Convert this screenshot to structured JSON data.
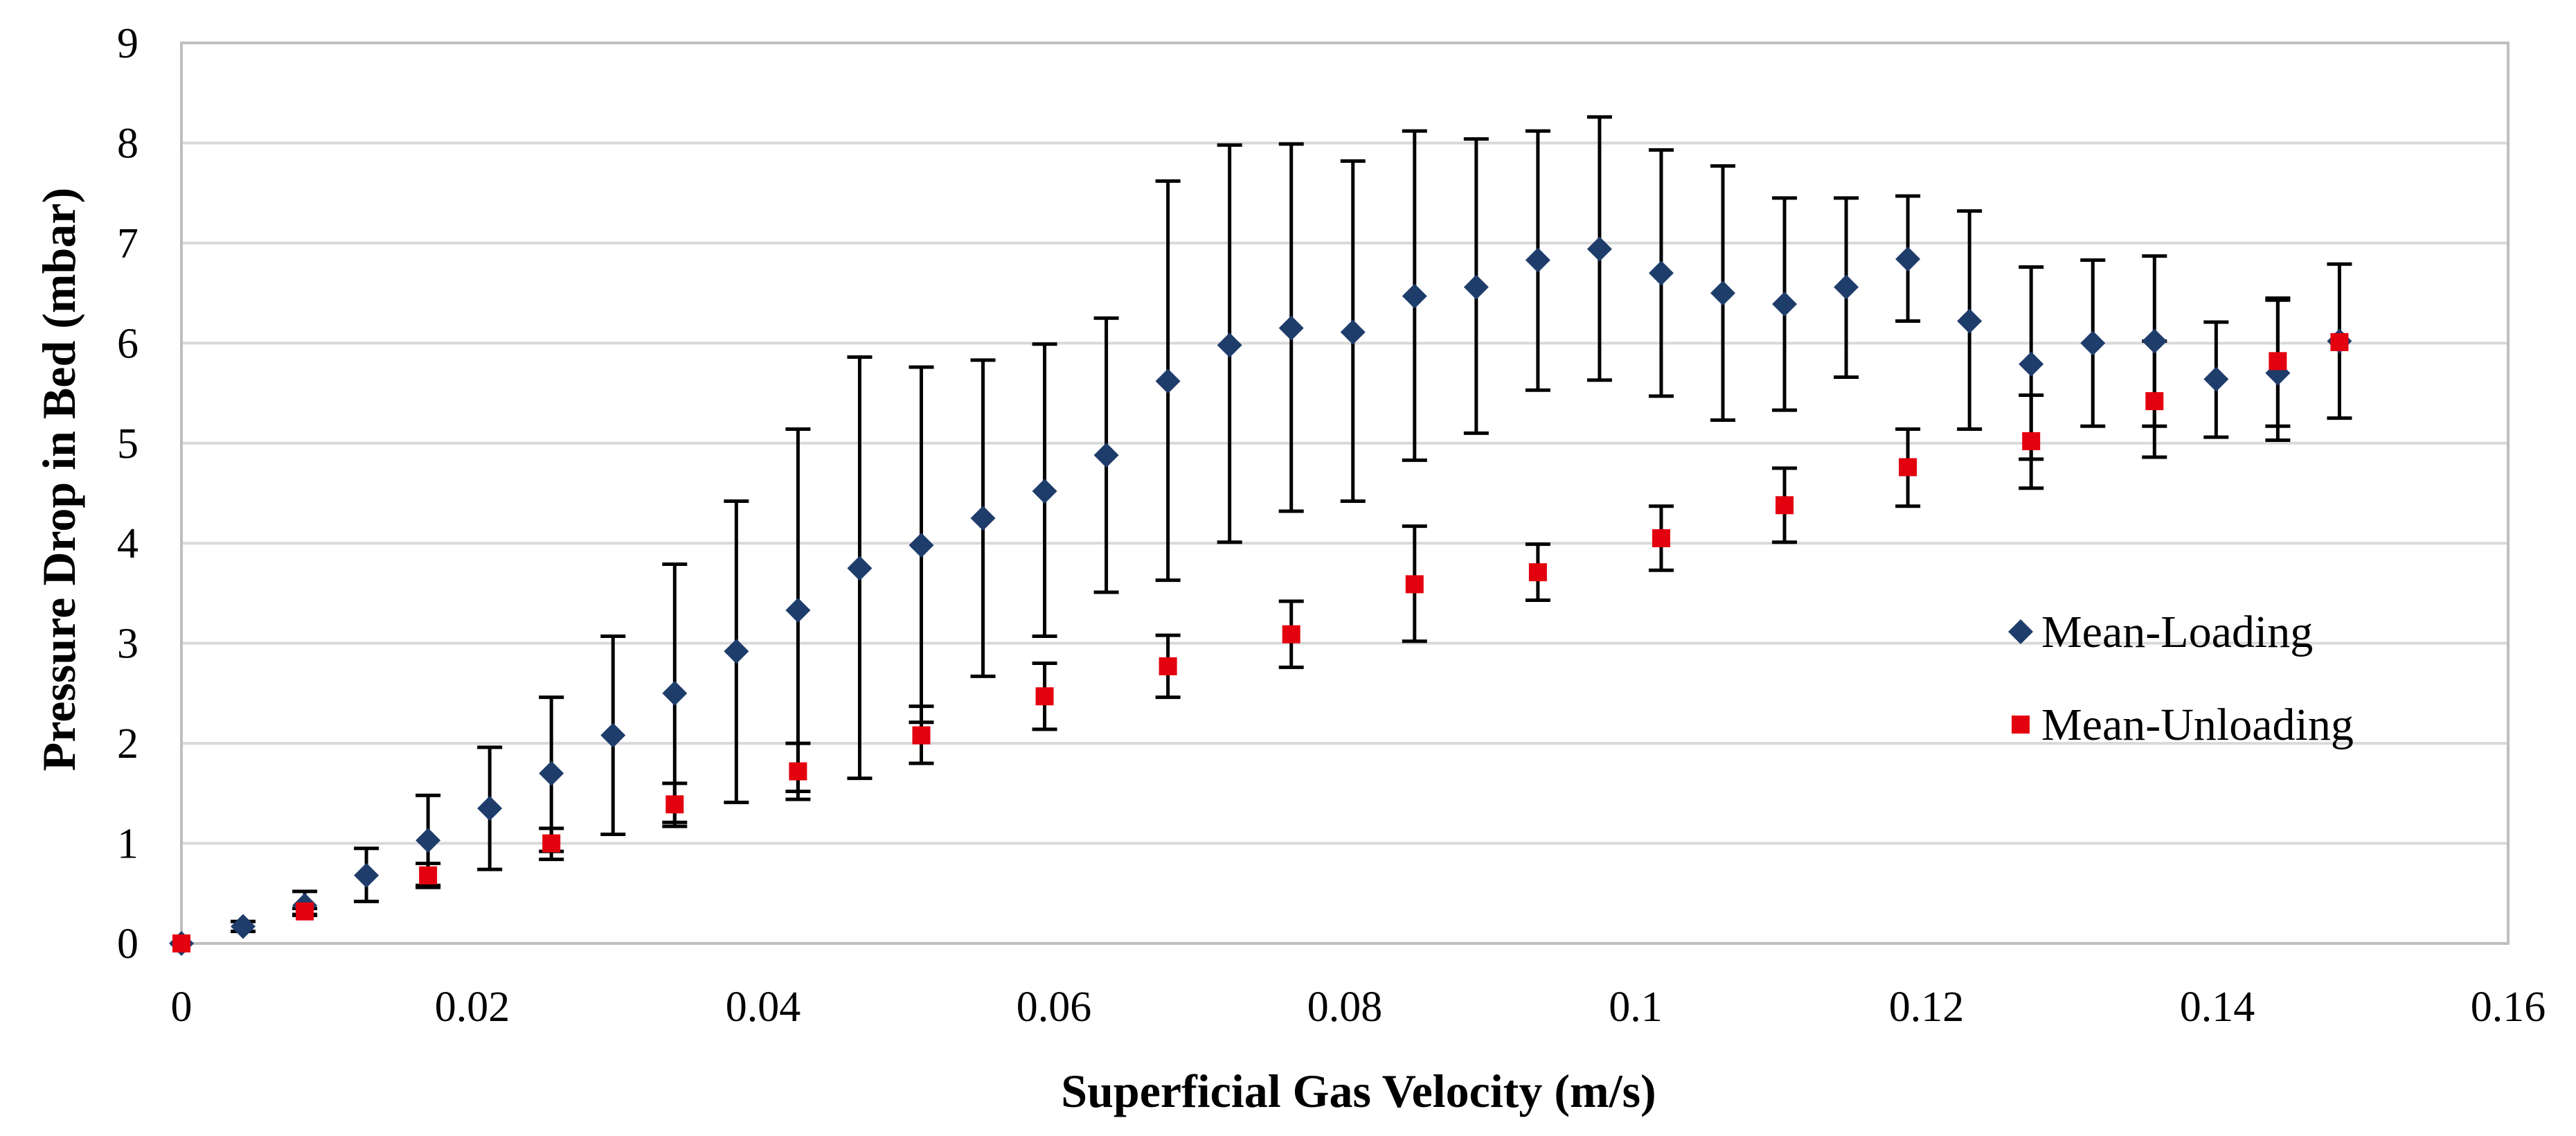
{
  "chart_data": {
    "type": "scatter",
    "xlabel": "Superficial Gas Velocity (m/s)",
    "ylabel": "Pressure Drop in Bed (mbar)",
    "xlim": [
      0,
      0.16
    ],
    "ylim": [
      0,
      9
    ],
    "x_ticks": [
      0,
      0.02,
      0.04,
      0.06,
      0.08,
      0.1,
      0.12,
      0.14,
      0.16
    ],
    "x_tick_labels": [
      "0",
      "0.02",
      "0.04",
      "0.06",
      "0.08",
      "0.1",
      "0.12",
      "0.14",
      "0.16"
    ],
    "y_ticks": [
      0,
      1,
      2,
      3,
      4,
      5,
      6,
      7,
      8,
      9
    ],
    "y_tick_labels": [
      "0",
      "1",
      "2",
      "3",
      "4",
      "5",
      "6",
      "7",
      "8",
      "9"
    ],
    "grid": "horizontal",
    "legend_position": "right",
    "series": [
      {
        "name": "Mean-Loading",
        "marker": "diamond",
        "color": "#1f3d6b",
        "points": [
          {
            "x": 0.0,
            "y": 0.0,
            "lo": 0.0,
            "hi": 0.0
          },
          {
            "x": 0.00424,
            "y": 0.17,
            "lo": 0.12,
            "hi": 0.22
          },
          {
            "x": 0.00848,
            "y": 0.38,
            "lo": 0.28,
            "hi": 0.52
          },
          {
            "x": 0.01272,
            "y": 0.68,
            "lo": 0.42,
            "hi": 0.95
          },
          {
            "x": 0.01696,
            "y": 1.03,
            "lo": 0.58,
            "hi": 1.48
          },
          {
            "x": 0.0212,
            "y": 1.35,
            "lo": 0.74,
            "hi": 1.96
          },
          {
            "x": 0.02544,
            "y": 1.7,
            "lo": 0.92,
            "hi": 2.46
          },
          {
            "x": 0.02968,
            "y": 2.08,
            "lo": 1.09,
            "hi": 3.07
          },
          {
            "x": 0.03392,
            "y": 2.5,
            "lo": 1.21,
            "hi": 3.79
          },
          {
            "x": 0.03816,
            "y": 2.92,
            "lo": 1.41,
            "hi": 4.42
          },
          {
            "x": 0.0424,
            "y": 3.33,
            "lo": 1.52,
            "hi": 5.14
          },
          {
            "x": 0.04664,
            "y": 3.75,
            "lo": 1.65,
            "hi": 5.86
          },
          {
            "x": 0.05088,
            "y": 3.98,
            "lo": 2.21,
            "hi": 5.76
          },
          {
            "x": 0.05512,
            "y": 4.25,
            "lo": 2.67,
            "hi": 5.83
          },
          {
            "x": 0.05936,
            "y": 4.52,
            "lo": 3.07,
            "hi": 5.99
          },
          {
            "x": 0.0636,
            "y": 4.88,
            "lo": 3.51,
            "hi": 6.25
          },
          {
            "x": 0.06784,
            "y": 5.62,
            "lo": 3.63,
            "hi": 7.62
          },
          {
            "x": 0.07208,
            "y": 5.98,
            "lo": 4.01,
            "hi": 7.98
          },
          {
            "x": 0.07632,
            "y": 6.15,
            "lo": 4.32,
            "hi": 7.99
          },
          {
            "x": 0.08056,
            "y": 6.11,
            "lo": 4.42,
            "hi": 7.82
          },
          {
            "x": 0.0848,
            "y": 6.47,
            "lo": 4.83,
            "hi": 8.12
          },
          {
            "x": 0.08904,
            "y": 6.56,
            "lo": 5.1,
            "hi": 8.04
          },
          {
            "x": 0.09328,
            "y": 6.83,
            "lo": 5.53,
            "hi": 8.12
          },
          {
            "x": 0.09752,
            "y": 6.94,
            "lo": 5.63,
            "hi": 8.26
          },
          {
            "x": 0.10176,
            "y": 6.7,
            "lo": 5.47,
            "hi": 7.93
          },
          {
            "x": 0.106,
            "y": 6.5,
            "lo": 5.23,
            "hi": 7.77
          },
          {
            "x": 0.11024,
            "y": 6.39,
            "lo": 5.33,
            "hi": 7.45
          },
          {
            "x": 0.11448,
            "y": 6.56,
            "lo": 5.66,
            "hi": 7.45
          },
          {
            "x": 0.11872,
            "y": 6.84,
            "lo": 6.22,
            "hi": 7.47
          },
          {
            "x": 0.12296,
            "y": 6.22,
            "lo": 5.14,
            "hi": 7.32
          },
          {
            "x": 0.1272,
            "y": 5.79,
            "lo": 4.84,
            "hi": 6.76
          },
          {
            "x": 0.13144,
            "y": 6.0,
            "lo": 5.17,
            "hi": 6.83
          },
          {
            "x": 0.13568,
            "y": 6.02,
            "lo": 5.17,
            "hi": 6.87
          },
          {
            "x": 0.13992,
            "y": 5.64,
            "lo": 5.06,
            "hi": 6.21
          },
          {
            "x": 0.14416,
            "y": 5.7,
            "lo": 5.03,
            "hi": 6.45
          },
          {
            "x": 0.1484,
            "y": 6.02,
            "lo": 5.25,
            "hi": 6.79
          }
        ]
      },
      {
        "name": "Mean-Unloading",
        "marker": "square",
        "color": "#e3000f",
        "points": [
          {
            "x": 0.0,
            "y": 0.0,
            "lo": 0.0,
            "hi": 0.0
          },
          {
            "x": 0.00848,
            "y": 0.32,
            "lo": 0.29,
            "hi": 0.35
          },
          {
            "x": 0.01696,
            "y": 0.68,
            "lo": 0.56,
            "hi": 0.8
          },
          {
            "x": 0.02544,
            "y": 1.0,
            "lo": 0.84,
            "hi": 1.15
          },
          {
            "x": 0.03392,
            "y": 1.39,
            "lo": 1.17,
            "hi": 1.6
          },
          {
            "x": 0.0424,
            "y": 1.72,
            "lo": 1.44,
            "hi": 2.0
          },
          {
            "x": 0.05088,
            "y": 2.08,
            "lo": 1.8,
            "hi": 2.37
          },
          {
            "x": 0.05936,
            "y": 2.47,
            "lo": 2.14,
            "hi": 2.8
          },
          {
            "x": 0.06784,
            "y": 2.77,
            "lo": 2.46,
            "hi": 3.08
          },
          {
            "x": 0.07632,
            "y": 3.09,
            "lo": 2.76,
            "hi": 3.42
          },
          {
            "x": 0.0848,
            "y": 3.59,
            "lo": 3.02,
            "hi": 4.17
          },
          {
            "x": 0.09328,
            "y": 3.71,
            "lo": 3.43,
            "hi": 3.99
          },
          {
            "x": 0.10176,
            "y": 4.05,
            "lo": 3.73,
            "hi": 4.37
          },
          {
            "x": 0.11024,
            "y": 4.38,
            "lo": 4.01,
            "hi": 4.75
          },
          {
            "x": 0.11872,
            "y": 4.76,
            "lo": 4.37,
            "hi": 5.14
          },
          {
            "x": 0.1272,
            "y": 5.02,
            "lo": 4.55,
            "hi": 5.48
          },
          {
            "x": 0.13568,
            "y": 5.42,
            "lo": 4.86,
            "hi": 6.02
          },
          {
            "x": 0.14416,
            "y": 5.82,
            "lo": 5.17,
            "hi": 6.43
          },
          {
            "x": 0.1484,
            "y": 6.01,
            "lo": 6.01,
            "hi": 6.01
          }
        ]
      }
    ]
  }
}
